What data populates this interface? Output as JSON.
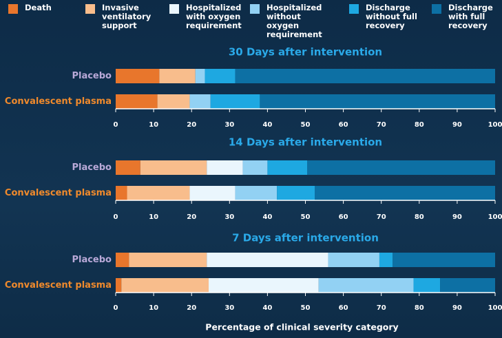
{
  "chart_data": [
    {
      "type": "stacked-bar",
      "title": "30 Days after intervention",
      "categories": [
        "Placebo",
        "Convalescent plasma"
      ],
      "category_colors": [
        "#b9a9d8",
        "#f08a2c"
      ],
      "series": [
        {
          "name": "Death",
          "color": "#e8762c",
          "values": [
            11.5,
            11
          ]
        },
        {
          "name": "Invasive ventilatory support",
          "color": "#f8bd8c",
          "values": [
            9.5,
            8.5
          ]
        },
        {
          "name": "Hospitalized with oxygen requirement",
          "color": "#eaf6fd",
          "values": [
            0,
            0
          ]
        },
        {
          "name": "Hospitalized without oxygen requirement",
          "color": "#92d1f3",
          "values": [
            2.5,
            5.5
          ]
        },
        {
          "name": "Discharge without full recovery",
          "color": "#1ea8e1",
          "values": [
            8,
            13
          ]
        },
        {
          "name": "Discharge with full recovery",
          "color": "#0d70a4",
          "values": [
            68.5,
            62
          ]
        }
      ],
      "xlim": [
        0,
        100
      ],
      "xticks": [
        0,
        10,
        20,
        30,
        40,
        50,
        60,
        70,
        80,
        90,
        100
      ]
    },
    {
      "type": "stacked-bar",
      "title": "14 Days after intervention",
      "categories": [
        "Placebo",
        "Convalescent plasma"
      ],
      "category_colors": [
        "#b9a9d8",
        "#f08a2c"
      ],
      "series": [
        {
          "name": "Death",
          "color": "#e8762c",
          "values": [
            6.5,
            3
          ]
        },
        {
          "name": "Invasive ventilatory support",
          "color": "#f8bd8c",
          "values": [
            17.5,
            16.5
          ]
        },
        {
          "name": "Hospitalized with oxygen requirement",
          "color": "#eaf6fd",
          "values": [
            9.5,
            12
          ]
        },
        {
          "name": "Hospitalized without oxygen requirement",
          "color": "#92d1f3",
          "values": [
            6.5,
            11
          ]
        },
        {
          "name": "Discharge without full recovery",
          "color": "#1ea8e1",
          "values": [
            10.5,
            10
          ]
        },
        {
          "name": "Discharge with full recovery",
          "color": "#0d70a4",
          "values": [
            49.5,
            47.5
          ]
        }
      ],
      "xlim": [
        0,
        100
      ],
      "xticks": [
        0,
        10,
        20,
        30,
        40,
        50,
        60,
        70,
        80,
        90,
        100
      ]
    },
    {
      "type": "stacked-bar",
      "title": "7 Days after intervention",
      "categories": [
        "Placebo",
        "Convalescent plasma"
      ],
      "category_colors": [
        "#b9a9d8",
        "#f08a2c"
      ],
      "series": [
        {
          "name": "Death",
          "color": "#e8762c",
          "values": [
            3.5,
            1.5
          ]
        },
        {
          "name": "Invasive ventilatory support",
          "color": "#f8bd8c",
          "values": [
            20.5,
            23
          ]
        },
        {
          "name": "Hospitalized with oxygen requirement",
          "color": "#eaf6fd",
          "values": [
            32,
            29
          ]
        },
        {
          "name": "Hospitalized without oxygen requirement",
          "color": "#92d1f3",
          "values": [
            13.5,
            25
          ]
        },
        {
          "name": "Discharge without full recovery",
          "color": "#1ea8e1",
          "values": [
            3.5,
            7
          ]
        },
        {
          "name": "Discharge with full recovery",
          "color": "#0d70a4",
          "values": [
            27,
            14.5
          ]
        }
      ],
      "xlim": [
        0,
        100
      ],
      "xticks": [
        0,
        10,
        20,
        30,
        40,
        50,
        60,
        70,
        80,
        90,
        100
      ],
      "xlabel": "Percentage of clinical severity category"
    }
  ]
}
